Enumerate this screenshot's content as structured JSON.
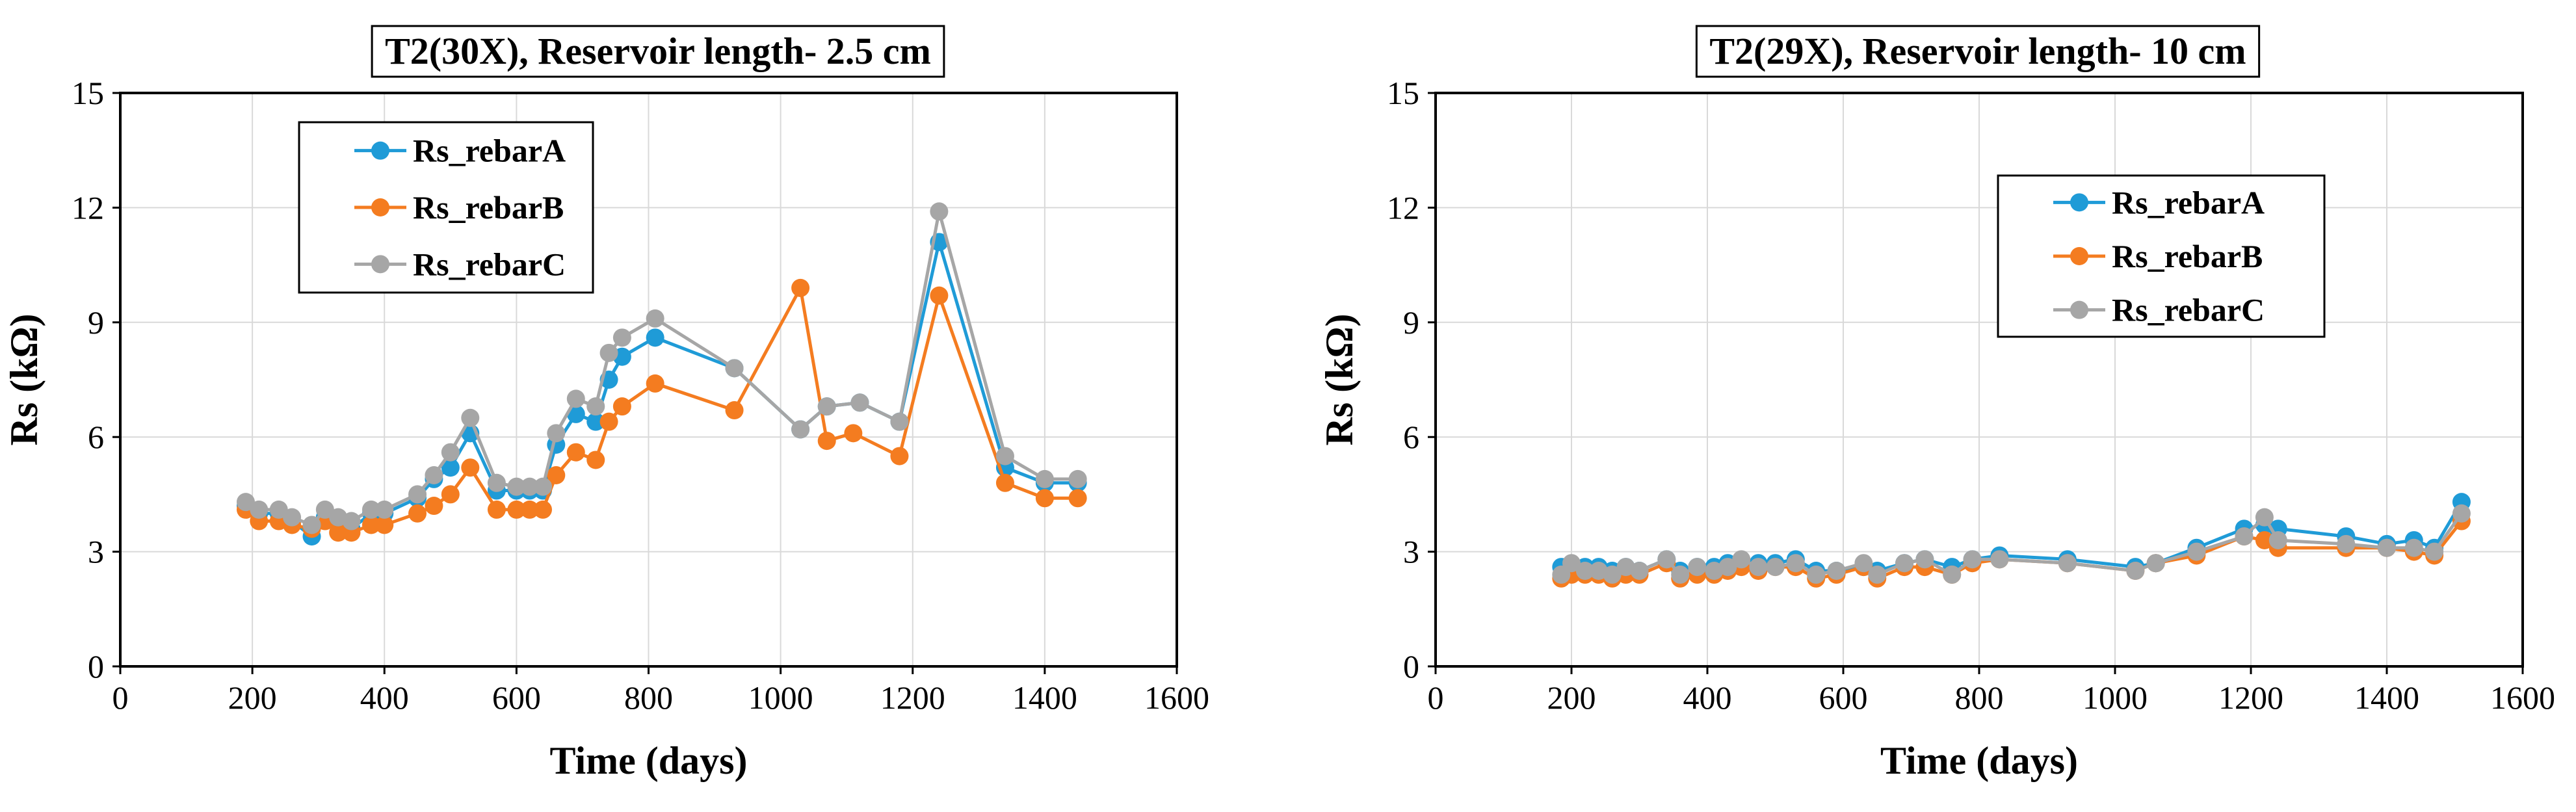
{
  "chart_data": [
    {
      "type": "line",
      "title": "T2(30X), Reservoir length- 2.5 cm",
      "xlabel": "Time (days)",
      "ylabel": "Rs (kΩ)",
      "xlim": [
        0,
        1600
      ],
      "ylim": [
        0,
        15
      ],
      "xticks": [
        0,
        200,
        400,
        600,
        800,
        1000,
        1200,
        1400,
        1600
      ],
      "yticks": [
        0,
        3,
        6,
        9,
        12,
        15
      ],
      "grid": true,
      "legend_position": "top-left",
      "series": [
        {
          "name": "Rs_rebarA",
          "color": "#1f9bd7",
          "x": [
            190,
            210,
            240,
            260,
            290,
            310,
            330,
            350,
            380,
            400,
            450,
            475,
            500,
            530,
            570,
            600,
            620,
            640,
            660,
            690,
            720,
            740,
            760,
            810,
            930,
            1030,
            1070,
            1120,
            1180,
            1240,
            1340,
            1400,
            1450
          ],
          "y": [
            4.2,
            4.0,
            4.0,
            3.8,
            3.4,
            3.9,
            3.7,
            3.6,
            4.0,
            4.0,
            4.4,
            4.9,
            5.2,
            6.1,
            4.6,
            4.6,
            4.6,
            4.6,
            5.8,
            6.6,
            6.4,
            7.5,
            8.1,
            8.6,
            7.8,
            6.2,
            6.8,
            6.9,
            6.4,
            11.1,
            5.2,
            4.8,
            4.8
          ]
        },
        {
          "name": "Rs_rebarB",
          "color": "#f47c20",
          "x": [
            190,
            210,
            240,
            260,
            290,
            310,
            330,
            350,
            380,
            400,
            450,
            475,
            500,
            530,
            570,
            600,
            620,
            640,
            660,
            690,
            720,
            740,
            760,
            810,
            930,
            1030,
            1070,
            1110,
            1180,
            1240,
            1340,
            1400,
            1450
          ],
          "y": [
            4.1,
            3.8,
            3.8,
            3.7,
            3.6,
            3.8,
            3.5,
            3.5,
            3.7,
            3.7,
            4.0,
            4.2,
            4.5,
            5.2,
            4.1,
            4.1,
            4.1,
            4.1,
            5.0,
            5.6,
            5.4,
            6.4,
            6.8,
            7.4,
            6.7,
            9.9,
            5.9,
            6.1,
            5.5,
            9.7,
            4.8,
            4.4,
            4.4
          ]
        },
        {
          "name": "Rs_rebarC",
          "color": "#a6a6a6",
          "x": [
            190,
            210,
            240,
            260,
            290,
            310,
            330,
            350,
            380,
            400,
            450,
            475,
            500,
            530,
            570,
            600,
            620,
            640,
            660,
            690,
            720,
            740,
            760,
            810,
            930,
            1030,
            1070,
            1120,
            1180,
            1240,
            1340,
            1400,
            1450
          ],
          "y": [
            4.3,
            4.1,
            4.1,
            3.9,
            3.7,
            4.1,
            3.9,
            3.8,
            4.1,
            4.1,
            4.5,
            5.0,
            5.6,
            6.5,
            4.8,
            4.7,
            4.7,
            4.7,
            6.1,
            7.0,
            6.8,
            8.2,
            8.6,
            9.1,
            7.8,
            6.2,
            6.8,
            6.9,
            6.4,
            11.9,
            5.5,
            4.9,
            4.9
          ]
        }
      ]
    },
    {
      "type": "line",
      "title": "T2(29X), Reservoir length- 10 cm",
      "xlabel": "Time (days)",
      "ylabel": "Rs (kΩ)",
      "xlim": [
        0,
        1600
      ],
      "ylim": [
        0,
        15
      ],
      "xticks": [
        0,
        200,
        400,
        600,
        800,
        1000,
        1200,
        1400,
        1600
      ],
      "yticks": [
        0,
        3,
        6,
        9,
        12,
        15
      ],
      "grid": true,
      "legend_position": "top-right",
      "series": [
        {
          "name": "Rs_rebarA",
          "color": "#1f9bd7",
          "x": [
            185,
            200,
            220,
            240,
            260,
            280,
            300,
            340,
            360,
            385,
            410,
            430,
            450,
            475,
            500,
            530,
            560,
            590,
            630,
            650,
            690,
            720,
            760,
            790,
            830,
            930,
            1030,
            1060,
            1120,
            1190,
            1220,
            1240,
            1340,
            1400,
            1440,
            1470,
            1510
          ],
          "y": [
            2.6,
            2.6,
            2.6,
            2.6,
            2.5,
            2.6,
            2.5,
            2.8,
            2.5,
            2.6,
            2.6,
            2.7,
            2.7,
            2.7,
            2.7,
            2.8,
            2.5,
            2.5,
            2.6,
            2.5,
            2.7,
            2.8,
            2.6,
            2.8,
            2.9,
            2.8,
            2.6,
            2.7,
            3.1,
            3.6,
            3.7,
            3.6,
            3.4,
            3.2,
            3.3,
            3.1,
            4.3
          ]
        },
        {
          "name": "Rs_rebarB",
          "color": "#f47c20",
          "x": [
            185,
            200,
            220,
            240,
            260,
            280,
            300,
            340,
            360,
            385,
            410,
            430,
            450,
            475,
            500,
            530,
            560,
            590,
            630,
            650,
            690,
            720,
            760,
            790,
            830,
            930,
            1030,
            1060,
            1120,
            1190,
            1220,
            1240,
            1340,
            1400,
            1440,
            1470,
            1510
          ],
          "y": [
            2.3,
            2.4,
            2.4,
            2.4,
            2.3,
            2.4,
            2.4,
            2.7,
            2.3,
            2.4,
            2.4,
            2.5,
            2.6,
            2.5,
            2.6,
            2.6,
            2.3,
            2.4,
            2.6,
            2.3,
            2.6,
            2.6,
            2.4,
            2.7,
            2.8,
            2.7,
            2.5,
            2.7,
            2.9,
            3.4,
            3.3,
            3.1,
            3.1,
            3.1,
            3.0,
            2.9,
            3.8
          ]
        },
        {
          "name": "Rs_rebarC",
          "color": "#a6a6a6",
          "x": [
            185,
            200,
            220,
            240,
            260,
            280,
            300,
            340,
            360,
            385,
            410,
            430,
            450,
            475,
            500,
            530,
            560,
            590,
            630,
            650,
            690,
            720,
            760,
            790,
            830,
            930,
            1030,
            1060,
            1120,
            1190,
            1220,
            1240,
            1340,
            1400,
            1440,
            1470,
            1510
          ],
          "y": [
            2.4,
            2.7,
            2.5,
            2.5,
            2.4,
            2.6,
            2.5,
            2.8,
            2.4,
            2.6,
            2.5,
            2.6,
            2.8,
            2.6,
            2.6,
            2.7,
            2.4,
            2.5,
            2.7,
            2.4,
            2.7,
            2.8,
            2.4,
            2.8,
            2.8,
            2.7,
            2.5,
            2.7,
            3.0,
            3.4,
            3.9,
            3.3,
            3.2,
            3.1,
            3.1,
            3.0,
            4.0
          ]
        }
      ]
    }
  ]
}
